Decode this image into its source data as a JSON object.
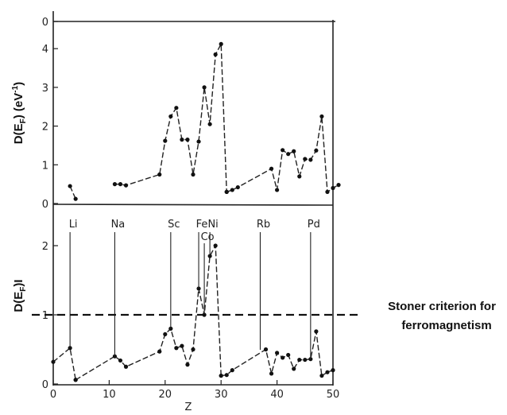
{
  "chart_data": [
    {
      "type": "line",
      "panel": "top",
      "ylabel_main": "D(E",
      "ylabel_sub": "F",
      "ylabel_rest": ") (eV",
      "ylabel_sup": "-1",
      "ylabel_end": ")",
      "xlim": [
        0,
        50
      ],
      "ylim": [
        0,
        4.5
      ],
      "yticks": [
        "0",
        "1",
        "2",
        "3",
        "4"
      ],
      "top_tick_label": "0",
      "grid": false,
      "series": [
        {
          "segments": [
            [
              [
                3,
                0.45
              ],
              [
                4,
                0.12
              ]
            ],
            [
              [
                11,
                0.5
              ],
              [
                12,
                0.5
              ],
              [
                13,
                0.47
              ],
              [
                19,
                0.75
              ],
              [
                20,
                1.62
              ],
              [
                21,
                2.25
              ],
              [
                22,
                2.47
              ],
              [
                23,
                1.65
              ],
              [
                24,
                1.65
              ],
              [
                25,
                0.75
              ],
              [
                26,
                1.6
              ],
              [
                27,
                3.0
              ],
              [
                28,
                2.05
              ],
              [
                29,
                3.85
              ],
              [
                30,
                4.12
              ],
              [
                31,
                0.3
              ]
            ],
            [
              [
                31,
                0.3
              ],
              [
                32,
                0.35
              ],
              [
                33,
                0.42
              ],
              [
                39,
                0.9
              ],
              [
                40,
                0.35
              ],
              [
                41,
                1.38
              ],
              [
                42,
                1.28
              ],
              [
                43,
                1.35
              ],
              [
                44,
                0.7
              ],
              [
                45,
                1.15
              ],
              [
                46,
                1.13
              ],
              [
                47,
                1.37
              ],
              [
                48,
                2.25
              ],
              [
                49,
                0.3
              ],
              [
                50,
                0.4
              ],
              [
                51,
                0.48
              ]
            ]
          ]
        }
      ]
    },
    {
      "type": "line",
      "panel": "bottom",
      "ylabel_main": "D(E",
      "ylabel_sub": "F",
      "ylabel_rest": ")I",
      "xlabel": "Z",
      "xlim": [
        0,
        50
      ],
      "ylim": [
        0,
        2.5
      ],
      "xticks": [
        "0",
        "10",
        "20",
        "30",
        "40",
        "50"
      ],
      "yticks": [
        "0",
        "1",
        "2"
      ],
      "grid": false,
      "series": [
        {
          "segments": [
            [
              [
                0,
                0.32
              ],
              [
                3,
                0.52
              ],
              [
                4,
                0.06
              ]
            ],
            [
              [
                4,
                0.06
              ],
              [
                11,
                0.4
              ],
              [
                12,
                0.34
              ],
              [
                13,
                0.25
              ],
              [
                19,
                0.47
              ],
              [
                20,
                0.72
              ],
              [
                21,
                0.8
              ],
              [
                22,
                0.52
              ],
              [
                23,
                0.55
              ],
              [
                24,
                0.28
              ],
              [
                25,
                0.5
              ],
              [
                26,
                1.38
              ],
              [
                27,
                1.0
              ],
              [
                28,
                1.85
              ],
              [
                29,
                2.0
              ],
              [
                30,
                0.12
              ]
            ],
            [
              [
                30,
                0.12
              ],
              [
                31,
                0.13
              ],
              [
                32,
                0.2
              ],
              [
                38,
                0.5
              ],
              [
                39,
                0.15
              ],
              [
                40,
                0.45
              ],
              [
                41,
                0.38
              ],
              [
                42,
                0.42
              ],
              [
                43,
                0.22
              ],
              [
                44,
                0.35
              ],
              [
                45,
                0.35
              ],
              [
                46,
                0.36
              ],
              [
                47,
                0.76
              ],
              [
                48,
                0.12
              ],
              [
                49,
                0.17
              ],
              [
                50,
                0.2
              ]
            ]
          ]
        }
      ],
      "elements": [
        {
          "label": "Li",
          "z": 3
        },
        {
          "label": "Na",
          "z": 11
        },
        {
          "label": "Sc",
          "z": 21
        },
        {
          "label": "Fe",
          "z": 26
        },
        {
          "label": "Co",
          "z": 27
        },
        {
          "label": "Ni",
          "z": 28
        },
        {
          "label": "Rb",
          "z": 37
        },
        {
          "label": "Pd",
          "z": 46
        }
      ],
      "stoner_line": {
        "y": 1.0,
        "label_line1": "Stoner criterion for",
        "label_line2": "ferromagnetism"
      }
    }
  ]
}
